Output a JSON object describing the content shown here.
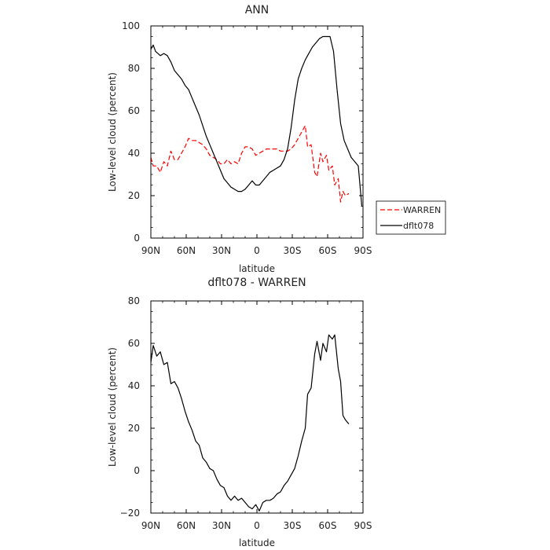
{
  "chart_data": [
    {
      "type": "line",
      "title": "ANN",
      "xlabel": "latitude",
      "ylabel": "Low-level cloud (percent)",
      "xlim": [
        -90,
        90
      ],
      "ylim": [
        0,
        100
      ],
      "xticks": [
        -90,
        -60,
        -30,
        0,
        30,
        60,
        90
      ],
      "xtick_labels": [
        "90N",
        "60N",
        "30N",
        "0",
        "30S",
        "60S",
        "90S"
      ],
      "yticks": [
        0,
        20,
        40,
        60,
        80,
        100
      ],
      "ytick_labels": [
        "0",
        "20",
        "40",
        "60",
        "80",
        "100"
      ],
      "legend_location": "right",
      "series": [
        {
          "name": "WARREN",
          "color": "#ff0000",
          "style": "dashed",
          "x": [
            -90,
            -88,
            -85,
            -82,
            -79,
            -76,
            -73,
            -70,
            -67,
            -64,
            -61,
            -58,
            -55,
            -52,
            -49,
            -46,
            -43,
            -40,
            -37,
            -34,
            -31,
            -28,
            -25,
            -22,
            -19,
            -16,
            -13,
            -10,
            -7,
            -4,
            -1,
            2,
            5,
            8,
            11,
            14,
            17,
            20,
            23,
            26,
            29,
            32,
            35,
            38,
            41,
            43,
            46,
            49,
            51,
            54,
            56,
            59,
            61,
            64,
            66,
            69,
            71,
            73,
            75,
            78
          ],
          "y": [
            38,
            34,
            34,
            31,
            36,
            34,
            41,
            37,
            37,
            40,
            43,
            47,
            46,
            46,
            45,
            44,
            42,
            39,
            38,
            37,
            35,
            35,
            37,
            35,
            36,
            35,
            40,
            43,
            43,
            42,
            39,
            40,
            41,
            42,
            42,
            42,
            42,
            41,
            41,
            41,
            42,
            44,
            47,
            50,
            53,
            43,
            44,
            31,
            29,
            40,
            36,
            39,
            32,
            34,
            25,
            28,
            17,
            22,
            20,
            21
          ]
        },
        {
          "name": "dflt078",
          "color": "#000000",
          "style": "solid",
          "x": [
            -90,
            -88,
            -86,
            -84,
            -82,
            -79,
            -76,
            -73,
            -70,
            -67,
            -64,
            -61,
            -58,
            -55,
            -52,
            -49,
            -46,
            -43,
            -40,
            -37,
            -34,
            -31,
            -28,
            -25,
            -22,
            -19,
            -16,
            -13,
            -10,
            -7,
            -4,
            -1,
            2,
            5,
            8,
            11,
            14,
            17,
            20,
            23,
            26,
            29,
            32,
            35,
            38,
            41,
            44,
            47,
            50,
            53,
            56,
            59,
            62,
            65,
            68,
            71,
            74,
            77,
            80,
            83,
            86,
            89
          ],
          "y": [
            89,
            91,
            88,
            87,
            86,
            87,
            86,
            83,
            79,
            77,
            75,
            72,
            70,
            66,
            62,
            58,
            53,
            48,
            44,
            40,
            36,
            32,
            28,
            26,
            24,
            23,
            22,
            22,
            23,
            25,
            27,
            25,
            25,
            27,
            29,
            31,
            32,
            33,
            34,
            37,
            42,
            52,
            65,
            75,
            80,
            84,
            87,
            90,
            92,
            94,
            95,
            95,
            95,
            88,
            70,
            54,
            46,
            42,
            38,
            36,
            34,
            15
          ]
        }
      ]
    },
    {
      "type": "line",
      "title": "dflt078 - WARREN",
      "xlabel": "latitude",
      "ylabel": "Low-level cloud (percent)",
      "xlim": [
        -90,
        90
      ],
      "ylim": [
        -20,
        80
      ],
      "xticks": [
        -90,
        -60,
        -30,
        0,
        30,
        60,
        90
      ],
      "xtick_labels": [
        "90N",
        "60N",
        "30N",
        "0",
        "30S",
        "60S",
        "90S"
      ],
      "yticks": [
        -20,
        0,
        20,
        40,
        60,
        80
      ],
      "ytick_labels": [
        "−20",
        "0",
        "20",
        "40",
        "60",
        "80"
      ],
      "series": [
        {
          "name": "dflt078 - WARREN",
          "color": "#000000",
          "style": "solid",
          "x": [
            -90,
            -88,
            -85,
            -82,
            -79,
            -76,
            -73,
            -70,
            -67,
            -64,
            -61,
            -58,
            -55,
            -52,
            -49,
            -46,
            -43,
            -40,
            -37,
            -34,
            -31,
            -28,
            -25,
            -22,
            -19,
            -16,
            -13,
            -10,
            -7,
            -4,
            -1,
            2,
            5,
            8,
            11,
            14,
            17,
            20,
            23,
            26,
            29,
            32,
            35,
            38,
            41,
            43,
            46,
            49,
            51,
            54,
            56,
            59,
            61,
            64,
            66,
            69,
            71,
            73,
            75,
            78
          ],
          "y": [
            51,
            59,
            54,
            56,
            50,
            51,
            41,
            42,
            39,
            34,
            28,
            23,
            19,
            14,
            12,
            6,
            4,
            1,
            0,
            -4,
            -7,
            -8,
            -12,
            -14,
            -12,
            -14,
            -13,
            -15,
            -17,
            -18,
            -16,
            -19,
            -15,
            -14,
            -14,
            -13,
            -11,
            -10,
            -7,
            -5,
            -2,
            1,
            7,
            14,
            20,
            36,
            39,
            55,
            61,
            52,
            60,
            56,
            64,
            62,
            64,
            48,
            42,
            26,
            24,
            22
          ]
        }
      ]
    }
  ]
}
